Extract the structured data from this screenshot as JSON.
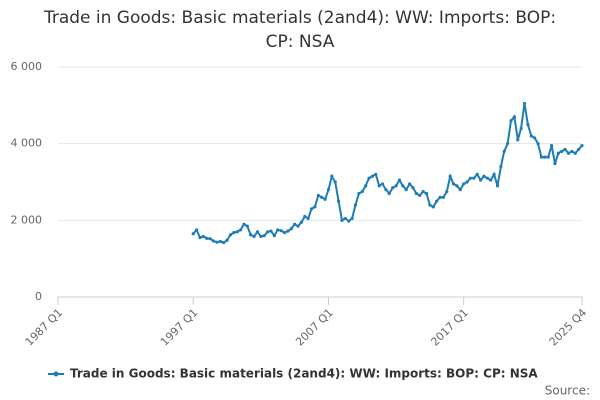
{
  "chart_data": {
    "type": "line",
    "title": "Trade in Goods: Basic materials (2and4): WW: Imports: BOP: CP: NSA",
    "categories": [
      "1987 Q1",
      null,
      null,
      null,
      null,
      null,
      null,
      null,
      null,
      null,
      null,
      null,
      null,
      null,
      null,
      null,
      null,
      null,
      null,
      null,
      null,
      null,
      null,
      null,
      null,
      null,
      null,
      null,
      null,
      null,
      null,
      null,
      null,
      null,
      null,
      null,
      null,
      null,
      null,
      null,
      "1997 Q1",
      null,
      null,
      null,
      null,
      null,
      null,
      null,
      null,
      null,
      null,
      null,
      null,
      null,
      null,
      null,
      null,
      null,
      null,
      null,
      null,
      null,
      null,
      null,
      null,
      null,
      null,
      null,
      null,
      null,
      null,
      null,
      null,
      null,
      null,
      null,
      null,
      null,
      null,
      null,
      "2007 Q1",
      null,
      null,
      null,
      null,
      null,
      null,
      null,
      null,
      null,
      null,
      null,
      null,
      null,
      null,
      null,
      null,
      null,
      null,
      null,
      null,
      null,
      null,
      null,
      null,
      null,
      null,
      null,
      null,
      null,
      null,
      null,
      null,
      null,
      null,
      null,
      null,
      null,
      null,
      null,
      "2017 Q1",
      null,
      null,
      null,
      null,
      null,
      null,
      null,
      null,
      null,
      null,
      null,
      null,
      null,
      null,
      null,
      null,
      null,
      null,
      null,
      null,
      null,
      null,
      null,
      null,
      null,
      null,
      null,
      null,
      null,
      null,
      null,
      null,
      null,
      null,
      "2025 Q4"
    ],
    "series": [
      {
        "name": "Trade in Goods: Basic materials (2and4): WW: Imports: BOP: CP: NSA",
        "color": "#1f7db5",
        "values": [
          null,
          null,
          null,
          null,
          null,
          null,
          null,
          null,
          null,
          null,
          null,
          null,
          null,
          null,
          null,
          null,
          null,
          null,
          null,
          null,
          null,
          null,
          null,
          null,
          null,
          null,
          null,
          null,
          null,
          null,
          null,
          null,
          null,
          null,
          null,
          null,
          null,
          null,
          null,
          null,
          1650,
          1750,
          1550,
          1580,
          1530,
          1520,
          1460,
          1430,
          1450,
          1420,
          1480,
          1620,
          1680,
          1700,
          1750,
          1900,
          1850,
          1620,
          1580,
          1700,
          1580,
          1600,
          1700,
          1720,
          1600,
          1750,
          1730,
          1680,
          1720,
          1780,
          1900,
          1850,
          1950,
          2100,
          2050,
          2300,
          2350,
          2650,
          2600,
          2550,
          2800,
          3150,
          3000,
          2500,
          2000,
          2050,
          1980,
          2050,
          2400,
          2700,
          2750,
          2900,
          3100,
          3150,
          3200,
          2900,
          2950,
          2800,
          2700,
          2850,
          2900,
          3050,
          2900,
          2800,
          2950,
          2850,
          2700,
          2650,
          2750,
          2700,
          2400,
          2350,
          2500,
          2600,
          2600,
          2750,
          3150,
          2950,
          2900,
          2800,
          2950,
          3000,
          3100,
          3100,
          3200,
          3050,
          3150,
          3100,
          3050,
          3200,
          2900,
          3400,
          3800,
          4000,
          4600,
          4700,
          4100,
          4400,
          5050,
          4500,
          4200,
          4150,
          4000,
          3650,
          3650,
          3650,
          3950,
          3480,
          3750,
          3800,
          3850,
          3750,
          3800,
          3750,
          3850,
          3950
        ]
      }
    ],
    "ylim": [
      0,
      6000
    ],
    "yticks": [
      0,
      {
        "value": 2000,
        "label": "2 000"
      },
      {
        "value": 4000,
        "label": "4 000"
      },
      {
        "value": 6000,
        "label": "6 000"
      }
    ],
    "grid": true,
    "legend": "bottom",
    "source": "Source:"
  }
}
